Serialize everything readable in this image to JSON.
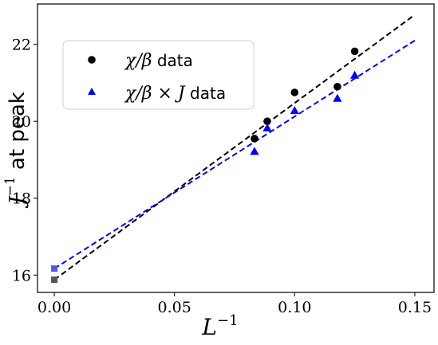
{
  "chart_data": {
    "type": "scatter",
    "xlabel_base": "L",
    "xlabel_exp": "−1",
    "ylabel_base": "J",
    "ylabel_exp": "−1",
    "ylabel_suffix": " at peak",
    "xlim": [
      -0.007,
      0.158
    ],
    "ylim": [
      15.55,
      23.05
    ],
    "xticks": [
      0.0,
      0.05,
      0.1,
      0.15
    ],
    "xtick_labels": [
      "0.00",
      "0.05",
      "0.10",
      "0.15"
    ],
    "yticks": [
      16,
      18,
      20,
      22
    ],
    "ytick_labels": [
      "16",
      "18",
      "20",
      "22"
    ],
    "legend_position": "upper-left",
    "series": [
      {
        "name_main": "χ/β",
        "name_suffix": " data",
        "marker": "circle",
        "color": "#000000",
        "x": [
          0.0833,
          0.0886,
          0.1,
          0.1178,
          0.125
        ],
        "y": [
          19.55,
          20.0,
          20.75,
          20.9,
          21.82
        ],
        "extrapolated": {
          "x": 0.0,
          "y": 15.88
        },
        "fit": {
          "x": [
            0.0,
            0.15
          ],
          "y": [
            15.88,
            22.77
          ]
        }
      },
      {
        "name_main": "χ/β × J",
        "name_suffix": " data",
        "marker": "triangle",
        "color": "#0000ff",
        "x": [
          0.0833,
          0.0886,
          0.1,
          0.1178,
          0.125
        ],
        "y": [
          19.22,
          19.83,
          20.28,
          20.6,
          21.2
        ],
        "extrapolated": {
          "x": 0.0,
          "y": 16.17
        },
        "fit": {
          "x": [
            0.0,
            0.15
          ],
          "y": [
            16.17,
            22.1
          ]
        }
      }
    ]
  }
}
